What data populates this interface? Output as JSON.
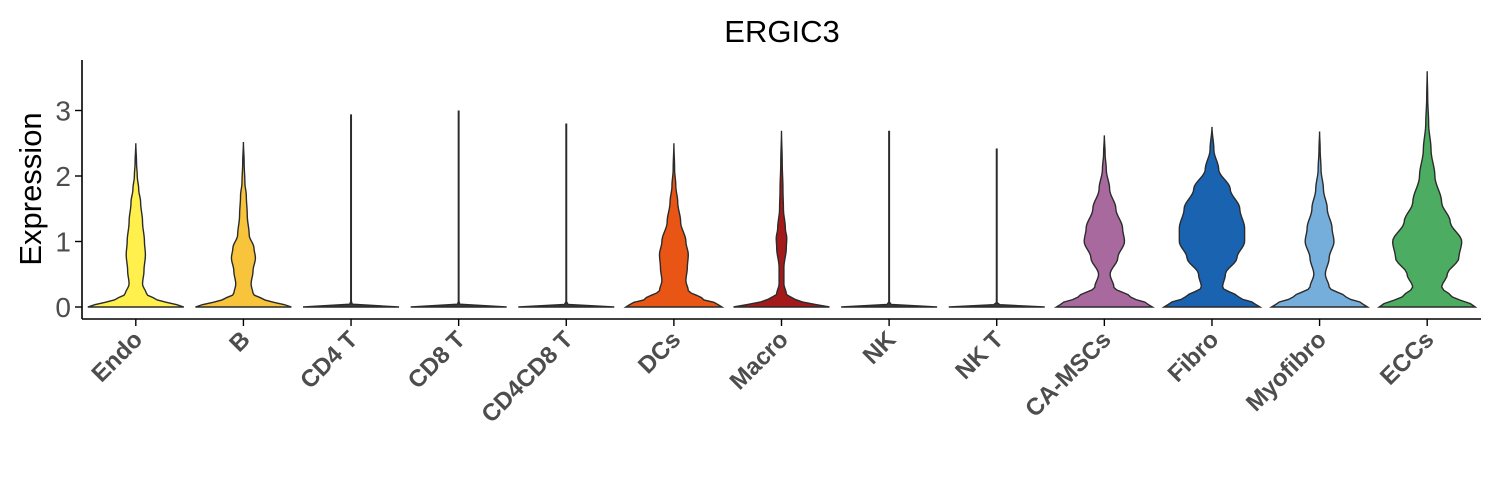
{
  "chart_data": {
    "type": "violin",
    "title": "ERGIC3",
    "ylabel": "Expression",
    "xlabel": "",
    "ylim": [
      -0.15,
      3.8
    ],
    "yticks": [
      0,
      1,
      2,
      3
    ],
    "legend": "none",
    "grid": false,
    "series": [
      {
        "category": "Endo",
        "color": "#FFF04E",
        "max": 2.5,
        "profile": [
          [
            0,
            1
          ],
          [
            0.04,
            0.85
          ],
          [
            0.1,
            0.45
          ],
          [
            0.2,
            0.22
          ],
          [
            0.35,
            0.14
          ],
          [
            0.55,
            0.17
          ],
          [
            0.8,
            0.2
          ],
          [
            1.0,
            0.18
          ],
          [
            1.3,
            0.14
          ],
          [
            1.6,
            0.1
          ],
          [
            1.8,
            0.06
          ],
          [
            2.0,
            0.03
          ],
          [
            2.2,
            0.015
          ],
          [
            2.5,
            0
          ]
        ]
      },
      {
        "category": "B",
        "color": "#F8C43C",
        "max": 2.52,
        "profile": [
          [
            0,
            1
          ],
          [
            0.04,
            0.85
          ],
          [
            0.1,
            0.45
          ],
          [
            0.2,
            0.2
          ],
          [
            0.35,
            0.16
          ],
          [
            0.55,
            0.2
          ],
          [
            0.75,
            0.25
          ],
          [
            0.9,
            0.22
          ],
          [
            1.1,
            0.12
          ],
          [
            1.4,
            0.08
          ],
          [
            1.7,
            0.06
          ],
          [
            1.9,
            0.03
          ],
          [
            2.2,
            0.015
          ],
          [
            2.52,
            0
          ]
        ]
      },
      {
        "category": "CD4 T",
        "color": "#3a3a3a",
        "max": 2.93,
        "profile": [
          [
            0,
            1
          ],
          [
            0.02,
            0.12
          ],
          [
            0.05,
            0.006
          ],
          [
            2.93,
            0.006
          ]
        ]
      },
      {
        "category": "CD8 T",
        "color": "#3a3a3a",
        "max": 2.99,
        "profile": [
          [
            0,
            1
          ],
          [
            0.02,
            0.12
          ],
          [
            0.05,
            0.006
          ],
          [
            2.99,
            0.006
          ]
        ]
      },
      {
        "category": "CD4CD8 T",
        "color": "#3a3a3a",
        "max": 2.79,
        "profile": [
          [
            0,
            1
          ],
          [
            0.02,
            0.12
          ],
          [
            0.05,
            0.006
          ],
          [
            2.79,
            0.006
          ]
        ]
      },
      {
        "category": "DCs",
        "color": "#E85514",
        "max": 2.5,
        "profile": [
          [
            0,
            1
          ],
          [
            0.05,
            0.9
          ],
          [
            0.12,
            0.6
          ],
          [
            0.25,
            0.3
          ],
          [
            0.4,
            0.25
          ],
          [
            0.6,
            0.28
          ],
          [
            0.8,
            0.3
          ],
          [
            1.0,
            0.25
          ],
          [
            1.3,
            0.14
          ],
          [
            1.6,
            0.08
          ],
          [
            1.85,
            0.04
          ],
          [
            2.1,
            0.015
          ],
          [
            2.5,
            0
          ]
        ]
      },
      {
        "category": "Macro",
        "color": "#A41A1A",
        "max": 2.69,
        "profile": [
          [
            0,
            1
          ],
          [
            0.04,
            0.7
          ],
          [
            0.1,
            0.3
          ],
          [
            0.2,
            0.1
          ],
          [
            0.35,
            0.05
          ],
          [
            0.6,
            0.05
          ],
          [
            0.9,
            0.1
          ],
          [
            1.05,
            0.11
          ],
          [
            1.2,
            0.08
          ],
          [
            1.5,
            0.04
          ],
          [
            1.8,
            0.03
          ],
          [
            2.2,
            0.015
          ],
          [
            2.69,
            0
          ]
        ]
      },
      {
        "category": "NK",
        "color": "#3a3a3a",
        "max": 2.68,
        "profile": [
          [
            0,
            1
          ],
          [
            0.02,
            0.12
          ],
          [
            0.05,
            0.006
          ],
          [
            2.68,
            0.006
          ]
        ]
      },
      {
        "category": "NK T",
        "color": "#3a3a3a",
        "max": 2.41,
        "profile": [
          [
            0,
            1
          ],
          [
            0.02,
            0.12
          ],
          [
            0.05,
            0.006
          ],
          [
            2.41,
            0.006
          ]
        ]
      },
      {
        "category": "CA-MSCs",
        "color": "#A8699E",
        "max": 2.62,
        "profile": [
          [
            0,
            1
          ],
          [
            0.05,
            0.9
          ],
          [
            0.15,
            0.55
          ],
          [
            0.3,
            0.2
          ],
          [
            0.5,
            0.12
          ],
          [
            0.75,
            0.28
          ],
          [
            1.0,
            0.42
          ],
          [
            1.2,
            0.38
          ],
          [
            1.5,
            0.24
          ],
          [
            1.8,
            0.11
          ],
          [
            2.1,
            0.04
          ],
          [
            2.35,
            0.015
          ],
          [
            2.62,
            0
          ]
        ]
      },
      {
        "category": "Fibro",
        "color": "#1A63B1",
        "max": 2.75,
        "profile": [
          [
            0,
            1
          ],
          [
            0.05,
            0.9
          ],
          [
            0.15,
            0.55
          ],
          [
            0.3,
            0.22
          ],
          [
            0.5,
            0.28
          ],
          [
            0.75,
            0.52
          ],
          [
            1.0,
            0.68
          ],
          [
            1.2,
            0.68
          ],
          [
            1.5,
            0.58
          ],
          [
            1.8,
            0.38
          ],
          [
            2.1,
            0.14
          ],
          [
            2.4,
            0.04
          ],
          [
            2.75,
            0
          ]
        ]
      },
      {
        "category": "Myofibro",
        "color": "#75ADDB",
        "max": 2.68,
        "profile": [
          [
            0,
            1
          ],
          [
            0.05,
            0.9
          ],
          [
            0.15,
            0.55
          ],
          [
            0.3,
            0.2
          ],
          [
            0.5,
            0.12
          ],
          [
            0.75,
            0.2
          ],
          [
            1.0,
            0.3
          ],
          [
            1.2,
            0.26
          ],
          [
            1.5,
            0.16
          ],
          [
            1.8,
            0.08
          ],
          [
            2.1,
            0.03
          ],
          [
            2.4,
            0.012
          ],
          [
            2.68,
            0
          ]
        ]
      },
      {
        "category": "ECCs",
        "color": "#4CAD62",
        "max": 3.6,
        "profile": [
          [
            0,
            1
          ],
          [
            0.05,
            0.9
          ],
          [
            0.15,
            0.52
          ],
          [
            0.3,
            0.3
          ],
          [
            0.5,
            0.42
          ],
          [
            0.75,
            0.66
          ],
          [
            1.0,
            0.72
          ],
          [
            1.3,
            0.48
          ],
          [
            1.6,
            0.3
          ],
          [
            2.0,
            0.16
          ],
          [
            2.4,
            0.08
          ],
          [
            2.8,
            0.03
          ],
          [
            3.2,
            0.01
          ],
          [
            3.6,
            0
          ]
        ]
      }
    ]
  }
}
